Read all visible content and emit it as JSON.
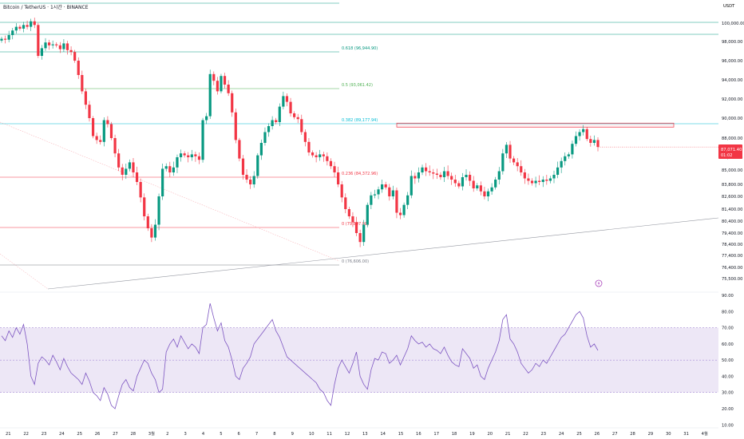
{
  "chart_title": "Bitcoin / TetherUS · 1시간 · BINANCE",
  "currency_label": "USDT",
  "current_price": "87,071.40",
  "countdown": "01:02",
  "colors": {
    "up": "#089981",
    "down": "#f23645",
    "rsi_line": "#7e57c2",
    "rsi_band": "#ede7f6",
    "trendline": "#9598a1",
    "zone_border": "#f23645"
  },
  "price_axis_labels": [
    "100,000.00",
    "98,000.00",
    "96,000.00",
    "94,000.00",
    "92,000.00",
    "90,000.00",
    "88,000.00",
    "86,000.00",
    "85,000.00",
    "83,800.00",
    "82,600.00",
    "81,400.00",
    "80,400.00",
    "79,400.00",
    "78,400.00",
    "77,400.00",
    "76,400.00",
    "75,500.00"
  ],
  "rsi_axis_labels": [
    "90.00",
    "80.00",
    "70.00",
    "60.00",
    "50.00",
    "40.00",
    "30.00",
    "20.00",
    "10.00"
  ],
  "time_axis_labels": [
    "21",
    "22",
    "23",
    "24",
    "25",
    "26",
    "27",
    "28",
    "3월",
    "2",
    "3",
    "4",
    "5",
    "6",
    "7",
    "8",
    "9",
    "10",
    "11",
    "12",
    "13",
    "14",
    "15",
    "16",
    "17",
    "18",
    "19",
    "20",
    "21",
    "22",
    "23",
    "24",
    "25",
    "26",
    "27",
    "28",
    "29",
    "30",
    "31",
    "4월"
  ],
  "fib_levels": [
    {
      "label": "0.618 (96,944.90)",
      "color": "#089981"
    },
    {
      "label": "0.5 (93,061.42)",
      "color": "#4caf50"
    },
    {
      "label": "0.382 (89,177.94)",
      "color": "#00bcd4"
    },
    {
      "label": "0.236 (84,372.96)",
      "color": "#f23645"
    },
    {
      "label": "0 (79,897.08)",
      "color": "#f23645"
    },
    {
      "label": "0 (76,606.00)",
      "color": "#787b86"
    }
  ],
  "event_icon": "lightning-icon",
  "chart_data": {
    "type": "candlestick",
    "price_series": [
      98300,
      98200,
      98700,
      99200,
      99600,
      99400,
      99800,
      99600,
      100200,
      99800,
      96500,
      97300,
      97900,
      97600,
      97700,
      97600,
      97200,
      97800,
      97100,
      96900,
      96000,
      94500,
      92800,
      91400,
      90000,
      88200,
      87800,
      87600,
      89800,
      89400,
      88000,
      86400,
      85200,
      84600,
      85100,
      85600,
      84800,
      84000,
      82500,
      80800,
      79800,
      79000,
      80100,
      82600,
      85100,
      85300,
      84800,
      85200,
      86000,
      86400,
      86200,
      86000,
      86300,
      86100,
      85800,
      89800,
      90200,
      94600,
      93900,
      92800,
      94400,
      93500,
      92600,
      90600,
      87800,
      85900,
      84600,
      84200,
      83800,
      84500,
      86200,
      87500,
      88600,
      89200,
      89800,
      89600,
      91200,
      92300,
      91700,
      90500,
      90100,
      89900,
      88600,
      87600,
      86500,
      86200,
      86000,
      86300,
      86100,
      85700,
      85300,
      84800,
      83800,
      82500,
      81400,
      80800,
      80300,
      79400,
      78600,
      80100,
      81800,
      82700,
      82800,
      83300,
      83800,
      83500,
      82600,
      83200,
      81100,
      80900,
      81800,
      82700,
      84500,
      84300,
      84800,
      85200,
      84900,
      84800,
      84700,
      84600,
      84400,
      84900,
      84500,
      84200,
      83900,
      83600,
      84400,
      84600,
      84100,
      83400,
      83700,
      83100,
      82600,
      83100,
      83500,
      84200,
      84900,
      86400,
      87300,
      85900,
      85600,
      85300,
      84800,
      84300,
      84100,
      83900,
      84100,
      84000,
      84200,
      84100,
      84300,
      84600,
      85200,
      85700,
      86100,
      86300,
      87400,
      88200,
      88600,
      88900,
      87900,
      87500,
      87800,
      87071
    ],
    "rsi_values": [
      65,
      62,
      68,
      64,
      70,
      66,
      72,
      60,
      40,
      35,
      48,
      52,
      50,
      47,
      53,
      49,
      44,
      51,
      46,
      42,
      40,
      38,
      35,
      42,
      37,
      30,
      28,
      25,
      33,
      29,
      22,
      20,
      28,
      35,
      38,
      33,
      31,
      40,
      45,
      50,
      48,
      42,
      38,
      30,
      32,
      55,
      60,
      63,
      58,
      65,
      61,
      57,
      60,
      58,
      54,
      70,
      72,
      85,
      76,
      68,
      73,
      62,
      58,
      50,
      40,
      38,
      45,
      48,
      52,
      60,
      63,
      66,
      69,
      72,
      75,
      68,
      64,
      58,
      52,
      50,
      48,
      46,
      44,
      42,
      40,
      38,
      36,
      32,
      30,
      25,
      22,
      35,
      45,
      50,
      46,
      42,
      48,
      55,
      40,
      35,
      32,
      44,
      51,
      50,
      55,
      54,
      48,
      50,
      53,
      47,
      52,
      57,
      65,
      62,
      60,
      61,
      58,
      60,
      57,
      56,
      54,
      58,
      53,
      49,
      47,
      46,
      57,
      54,
      51,
      45,
      47,
      40,
      38,
      45,
      50,
      55,
      62,
      75,
      78,
      63,
      60,
      55,
      48,
      45,
      42,
      44,
      48,
      46,
      50,
      48,
      52,
      56,
      60,
      64,
      66,
      70,
      74,
      78,
      80,
      76,
      65,
      58,
      60,
      56
    ],
    "rsi_band": [
      30,
      70
    ],
    "price_range": [
      75500,
      100000
    ],
    "rsi_range": [
      10,
      90
    ],
    "resistance_zone": [
      89100,
      89500
    ],
    "x_range": [
      "2월 21",
      "4월 1"
    ]
  }
}
